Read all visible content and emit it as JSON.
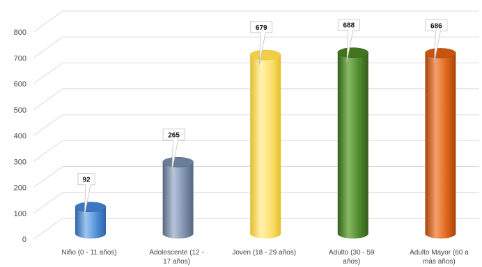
{
  "chart_data": {
    "type": "bar",
    "style": "3d-cylinder",
    "title": "",
    "xlabel": "",
    "ylabel": "",
    "ylim": [
      0,
      800
    ],
    "y_ticks": [
      "0",
      "100",
      "200",
      "300",
      "400",
      "500",
      "600",
      "700",
      "800"
    ],
    "grid": true,
    "legend": "none",
    "categories": [
      [
        "Niño (0 - 11 años)"
      ],
      [
        "Adolescente (12 -",
        "17 años)"
      ],
      [
        "Joven (18 - 29 años)"
      ],
      [
        "Adulto (30 - 59",
        "años)"
      ],
      [
        "Adulto Mayor (60 a",
        "más años)"
      ]
    ],
    "values": [
      92,
      265,
      679,
      688,
      686
    ],
    "data_labels": [
      "92",
      "265",
      "679",
      "688",
      "686"
    ],
    "colors": [
      {
        "main": "#4f8fd6",
        "dark": "#2e64a8",
        "light": "#9cc6f0",
        "top": "#3c78c2"
      },
      {
        "main": "#7f93b0",
        "dark": "#56677f",
        "light": "#b8c5d8",
        "top": "#6b7e99"
      },
      {
        "main": "#fde06a",
        "dark": "#e6bd2c",
        "light": "#fff2b0",
        "top": "#f2cd45"
      },
      {
        "main": "#4f8a2e",
        "dark": "#335f1b",
        "light": "#86b964",
        "top": "#41761f"
      },
      {
        "main": "#e0661a",
        "dark": "#a84409",
        "light": "#f3a069",
        "top": "#c8550f"
      }
    ]
  }
}
